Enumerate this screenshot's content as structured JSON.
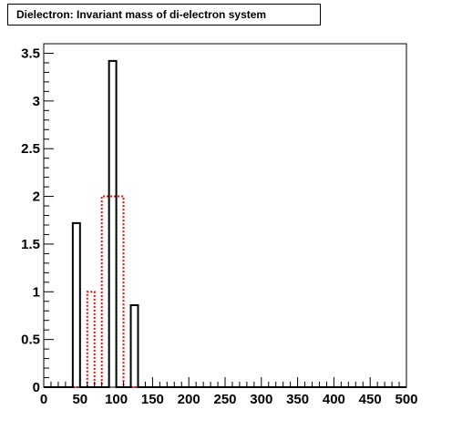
{
  "chart_data": {
    "type": "bar",
    "title": "Dielectron: Invariant mass of di-electron system",
    "xlabel": "",
    "ylabel": "",
    "xlim": [
      0,
      500
    ],
    "ylim": [
      0,
      3.6
    ],
    "xticks": [
      "0",
      "50",
      "100",
      "150",
      "200",
      "250",
      "300",
      "350",
      "400",
      "450",
      "500"
    ],
    "yticks": [
      "0",
      "0.5",
      "1",
      "1.5",
      "2",
      "2.5",
      "3",
      "3.5"
    ],
    "bin_edges": [
      0,
      10,
      20,
      30,
      40,
      50,
      60,
      70,
      80,
      90,
      100,
      110,
      120,
      130,
      140,
      150,
      160,
      170,
      180,
      190,
      200,
      210,
      220,
      230,
      240,
      250,
      260,
      270,
      280,
      290,
      300,
      310,
      320,
      330,
      340,
      350,
      360,
      370,
      380,
      390,
      400,
      410,
      420,
      430,
      440,
      450,
      460,
      470,
      480,
      490,
      500
    ],
    "series": [
      {
        "style": "solid",
        "color": "#000000",
        "values": [
          0,
          0,
          0,
          0,
          1.72,
          0,
          0,
          0,
          0,
          3.42,
          0,
          0,
          0.86,
          0,
          0,
          0,
          0,
          0,
          0,
          0,
          0,
          0,
          0,
          0,
          0,
          0,
          0,
          0,
          0,
          0,
          0,
          0,
          0,
          0,
          0,
          0,
          0,
          0,
          0,
          0,
          0,
          0,
          0,
          0,
          0,
          0,
          0,
          0,
          0,
          0
        ]
      },
      {
        "style": "dotted",
        "color": "#ff0000",
        "values": [
          0,
          0,
          0,
          0,
          0,
          0,
          1.0,
          0,
          2.0,
          2.0,
          2.0,
          0,
          0,
          0,
          0,
          0,
          0,
          0,
          0,
          0,
          0,
          0,
          0,
          0,
          0,
          0,
          0,
          0,
          0,
          0,
          0,
          0,
          0,
          0,
          0,
          0,
          0,
          0,
          0,
          0,
          0,
          0,
          0,
          0,
          0,
          0,
          0,
          0,
          0,
          0
        ]
      }
    ],
    "grid": false,
    "legend": "none"
  }
}
